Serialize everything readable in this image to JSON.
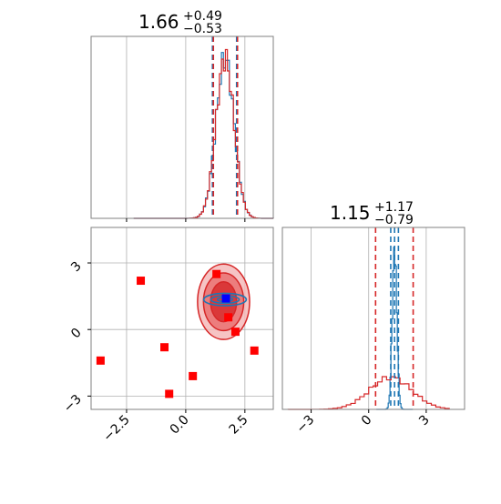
{
  "chart_data": {
    "type": "corner",
    "parameters": [
      {
        "median": 1.66,
        "err_plus": 0.49,
        "err_minus": 0.53
      },
      {
        "median": 1.15,
        "err_plus": 1.17,
        "err_minus": 0.79
      }
    ],
    "titles": [
      {
        "main": "1.66",
        "sup": "+0.49",
        "sub": "−0.53"
      },
      {
        "main": "1.15",
        "sup": "+1.17",
        "sub": "−0.79"
      }
    ],
    "xlim_param1": [
      -4.0,
      3.7
    ],
    "xlim_param2": [
      -4.5,
      5.0
    ],
    "ylim_param2": [
      -3.6,
      4.6
    ],
    "ticks_param1": {
      "values": [
        -2.5,
        0.0,
        2.5
      ],
      "labels": [
        "−2.5",
        "0.0",
        "2.5"
      ]
    },
    "ticks_param2": {
      "values": [
        -3,
        0,
        3
      ],
      "labels": [
        "−3",
        "0",
        "3"
      ]
    },
    "series": [
      {
        "name": "",
        "color": "#1f77b4",
        "hist_param1": {
          "median": 1.66,
          "q16": 1.13,
          "q84": 2.15,
          "sigma": 0.38
        },
        "hist_param2": {
          "median": 1.35,
          "q16": 1.15,
          "q84": 1.55,
          "sigma": 0.12
        },
        "contour_center": [
          1.66,
          1.35
        ],
        "contour_radii": [
          [
            0.9,
            0.28
          ],
          [
            0.6,
            0.17
          ],
          [
            0.32,
            0.09
          ]
        ]
      },
      {
        "name": "",
        "color": "#d62728",
        "hist_param1": {
          "median": 1.66,
          "q16": 1.13,
          "q84": 2.15,
          "sigma": 0.38
        },
        "hist_param2": {
          "median": 1.15,
          "q16": 0.36,
          "q84": 2.32,
          "sigma": 1.1
        },
        "contour_center": [
          1.6,
          1.25
        ],
        "contour_radii": [
          [
            1.1,
            1.7
          ],
          [
            0.85,
            1.3
          ],
          [
            0.55,
            0.9
          ]
        ]
      }
    ],
    "red_points": [
      [
        -3.6,
        -1.4
      ],
      [
        -1.9,
        2.2
      ],
      [
        -0.9,
        -0.8
      ],
      [
        -0.7,
        -2.9
      ],
      [
        0.3,
        -2.1
      ],
      [
        1.3,
        2.5
      ],
      [
        1.8,
        0.55
      ],
      [
        2.1,
        -0.1
      ],
      [
        2.9,
        -0.95
      ]
    ],
    "blue_points": [
      [
        1.7,
        1.4
      ]
    ],
    "grid": true
  }
}
